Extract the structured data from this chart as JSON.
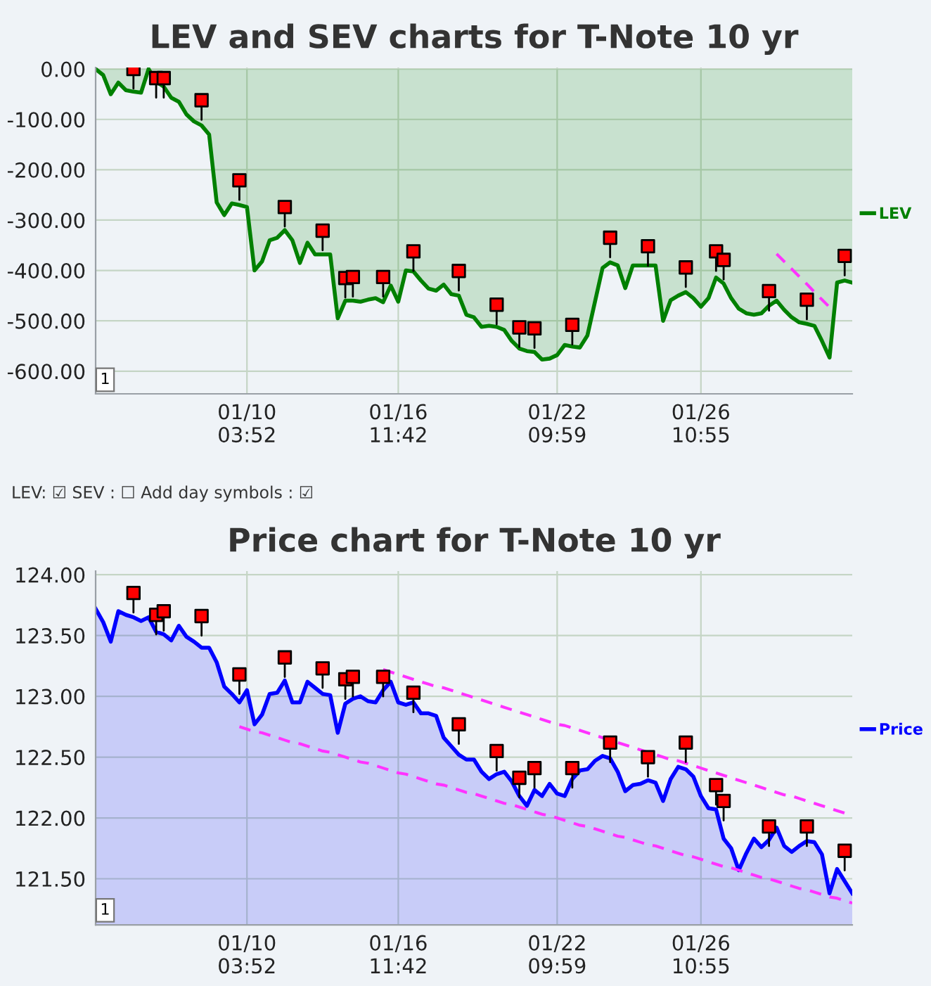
{
  "chart_data": [
    {
      "type": "area",
      "title": "LEV and SEV charts for T-Note 10 yr",
      "categories": [
        null,
        null,
        null,
        null,
        null,
        null,
        null,
        null,
        null,
        null,
        null,
        null,
        null,
        null,
        null,
        null,
        null,
        null,
        null,
        null,
        "01/10\n03:52",
        null,
        null,
        null,
        null,
        null,
        null,
        null,
        null,
        null,
        null,
        null,
        null,
        null,
        null,
        null,
        null,
        null,
        null,
        null,
        "01/16\n11:42",
        null,
        null,
        null,
        null,
        null,
        null,
        null,
        null,
        null,
        null,
        null,
        null,
        null,
        null,
        null,
        null,
        null,
        null,
        null,
        null,
        "01/22\n09:59",
        null,
        null,
        null,
        null,
        null,
        null,
        null,
        null,
        null,
        null,
        null,
        null,
        null,
        null,
        null,
        null,
        null,
        null,
        "01/26\n10:55",
        null,
        null,
        null,
        null,
        null,
        null,
        null,
        null,
        null,
        null,
        null,
        null,
        null,
        null,
        null,
        null,
        null,
        null,
        null,
        null
      ],
      "ylim": [
        -645,
        3
      ],
      "yticks": [
        {
          "value": 0,
          "label": "0.00"
        },
        {
          "value": -100,
          "label": "-100.00"
        },
        {
          "value": -200,
          "label": "-200.00"
        },
        {
          "value": -300,
          "label": "-300.00"
        },
        {
          "value": -400,
          "label": "-400.00"
        },
        {
          "value": -500,
          "label": "-500.00"
        },
        {
          "value": -600,
          "label": "-600.00"
        }
      ],
      "grid": true,
      "legend": "right",
      "annotations": [
        "1"
      ],
      "series": [
        {
          "name": "LEV",
          "color": "#008000",
          "values": [
            0,
            -12,
            -50,
            -27,
            -42,
            -45,
            -47,
            0,
            -25,
            -35,
            -57,
            -65,
            -90,
            -104,
            -112,
            -130,
            -265,
            -290,
            -267,
            -270,
            -274,
            -400,
            -382,
            -340,
            -335,
            -320,
            -340,
            -385,
            -345,
            -368,
            -368,
            -368,
            -495,
            -460,
            -460,
            -462,
            -458,
            -455,
            -463,
            -430,
            -462,
            -400,
            -402,
            -420,
            -436,
            -440,
            -428,
            -447,
            -450,
            -488,
            -493,
            -512,
            -510,
            -512,
            -518,
            -540,
            -555,
            -560,
            -562,
            -577,
            -575,
            -568,
            -548,
            -551,
            -553,
            -529,
            -462,
            -395,
            -384,
            -390,
            -435,
            -390,
            -390,
            -390,
            -390,
            -500,
            -459,
            -450,
            -443,
            -455,
            -472,
            -455,
            -414,
            -426,
            -455,
            -476,
            -485,
            -488,
            -485,
            -470,
            -460,
            -478,
            -493,
            -503,
            -506,
            -510,
            -540,
            -573,
            -424,
            -420,
            -424
          ]
        },
        {
          "type": "scatter",
          "color": "#ff0000",
          "marker": "square",
          "values": [
            null,
            null,
            null,
            null,
            null,
            0,
            null,
            null,
            -18,
            -18,
            null,
            null,
            null,
            null,
            -62,
            null,
            null,
            null,
            null,
            -221,
            null,
            null,
            null,
            null,
            null,
            -274,
            null,
            null,
            null,
            null,
            -321,
            null,
            null,
            -415,
            -413,
            null,
            null,
            null,
            -413,
            null,
            null,
            null,
            -362,
            null,
            null,
            null,
            null,
            null,
            -401,
            null,
            null,
            null,
            null,
            -468,
            null,
            null,
            -513,
            null,
            -515,
            null,
            null,
            null,
            null,
            -508,
            null,
            null,
            null,
            null,
            -335,
            null,
            null,
            null,
            null,
            -352,
            null,
            null,
            null,
            null,
            -394,
            null,
            null,
            null,
            -362,
            -379,
            null,
            null,
            null,
            null,
            null,
            -441,
            null,
            null,
            null,
            null,
            -458,
            null,
            null,
            null,
            null,
            -371,
            null
          ]
        },
        {
          "type": "line",
          "color": "#ff33ff",
          "line_style": "dashed",
          "values": [
            null,
            null,
            null,
            null,
            null,
            null,
            null,
            null,
            null,
            null,
            null,
            null,
            null,
            null,
            null,
            null,
            null,
            null,
            null,
            null,
            null,
            null,
            null,
            null,
            null,
            null,
            null,
            null,
            null,
            null,
            null,
            null,
            null,
            null,
            null,
            null,
            null,
            null,
            null,
            null,
            null,
            null,
            null,
            null,
            null,
            null,
            null,
            null,
            null,
            null,
            null,
            null,
            null,
            null,
            null,
            null,
            null,
            null,
            null,
            null,
            null,
            null,
            null,
            null,
            null,
            null,
            null,
            null,
            null,
            null,
            null,
            null,
            null,
            null,
            null,
            null,
            null,
            null,
            null,
            null,
            null,
            null,
            null,
            null,
            null,
            null,
            null,
            null,
            null,
            null,
            -367,
            -382,
            -397,
            -412,
            -427,
            -443,
            -458,
            -473,
            null,
            null,
            null
          ]
        }
      ]
    },
    {
      "type": "other",
      "annotations": [
        "LEV: ☑ SEV : ☐ Add day symbols : ☑"
      ]
    },
    {
      "type": "area",
      "title": "Price chart for T-Note 10 yr",
      "categories": [
        null,
        null,
        null,
        null,
        null,
        null,
        null,
        null,
        null,
        null,
        null,
        null,
        null,
        null,
        null,
        null,
        null,
        null,
        null,
        null,
        "01/10\n03:52",
        null,
        null,
        null,
        null,
        null,
        null,
        null,
        null,
        null,
        null,
        null,
        null,
        null,
        null,
        null,
        null,
        null,
        null,
        null,
        "01/16\n11:42",
        null,
        null,
        null,
        null,
        null,
        null,
        null,
        null,
        null,
        null,
        null,
        null,
        null,
        null,
        null,
        null,
        null,
        null,
        null,
        null,
        "01/22\n09:59",
        null,
        null,
        null,
        null,
        null,
        null,
        null,
        null,
        null,
        null,
        null,
        null,
        null,
        null,
        null,
        null,
        null,
        null,
        "01/26\n10:55",
        null,
        null,
        null,
        null,
        null,
        null,
        null,
        null,
        null,
        null,
        null,
        null,
        null,
        null,
        null,
        null,
        null,
        null,
        null,
        null
      ],
      "ylim": [
        121.12,
        124.03
      ],
      "yticks": [
        {
          "value": 121.5,
          "label": "121.50"
        },
        {
          "value": 122,
          "label": "122.00"
        },
        {
          "value": 122.5,
          "label": "122.50"
        },
        {
          "value": 123,
          "label": "123.00"
        },
        {
          "value": 123.5,
          "label": "123.50"
        },
        {
          "value": 124,
          "label": "124.00"
        }
      ],
      "grid": true,
      "legend": "right",
      "annotations": [
        "1"
      ],
      "series": [
        {
          "name": "Price",
          "color": "#0000ff",
          "values": [
            123.72,
            123.61,
            123.45,
            123.7,
            123.67,
            123.65,
            123.62,
            123.65,
            123.53,
            123.51,
            123.46,
            123.58,
            123.49,
            123.45,
            123.4,
            123.4,
            123.28,
            123.08,
            123.02,
            122.95,
            123.05,
            122.77,
            122.85,
            123.02,
            123.03,
            123.13,
            122.95,
            122.95,
            123.12,
            123.07,
            123.02,
            123.01,
            122.7,
            122.94,
            122.98,
            123.0,
            122.96,
            122.95,
            123.05,
            123.12,
            122.95,
            122.93,
            122.95,
            122.86,
            122.86,
            122.84,
            122.66,
            122.59,
            122.52,
            122.48,
            122.48,
            122.38,
            122.32,
            122.36,
            122.38,
            122.3,
            122.18,
            122.1,
            122.23,
            122.18,
            122.28,
            122.2,
            122.18,
            122.32,
            122.39,
            122.4,
            122.47,
            122.51,
            122.49,
            122.38,
            122.22,
            122.27,
            122.28,
            122.31,
            122.29,
            122.14,
            122.32,
            122.42,
            122.4,
            122.34,
            122.18,
            122.08,
            122.07,
            121.83,
            121.75,
            121.57,
            121.71,
            121.83,
            121.76,
            121.82,
            121.92,
            121.77,
            121.72,
            121.77,
            121.81,
            121.8,
            121.7,
            121.38,
            121.58,
            121.48,
            121.38
          ]
        },
        {
          "type": "scatter",
          "color": "#ff0000",
          "marker": "square",
          "values": [
            null,
            null,
            null,
            null,
            null,
            123.85,
            null,
            null,
            123.67,
            123.7,
            null,
            null,
            null,
            null,
            123.66,
            null,
            null,
            null,
            null,
            123.18,
            null,
            null,
            null,
            null,
            null,
            123.32,
            null,
            null,
            null,
            null,
            123.23,
            null,
            null,
            123.14,
            123.16,
            null,
            null,
            null,
            123.16,
            null,
            null,
            null,
            123.03,
            null,
            null,
            null,
            null,
            null,
            122.77,
            null,
            null,
            null,
            null,
            122.55,
            null,
            null,
            122.33,
            null,
            122.41,
            null,
            null,
            null,
            null,
            122.41,
            null,
            null,
            null,
            null,
            122.62,
            null,
            null,
            null,
            null,
            122.5,
            null,
            null,
            null,
            null,
            122.62,
            null,
            null,
            null,
            122.27,
            122.14,
            null,
            null,
            null,
            null,
            null,
            121.93,
            null,
            null,
            null,
            null,
            121.93,
            null,
            null,
            null,
            null,
            121.73,
            null
          ]
        },
        {
          "type": "line",
          "color": "#ff33ff",
          "line_style": "dashed",
          "values": [
            null,
            null,
            null,
            null,
            null,
            null,
            null,
            null,
            null,
            null,
            null,
            null,
            null,
            null,
            null,
            null,
            null,
            null,
            null,
            null,
            null,
            null,
            null,
            null,
            null,
            null,
            null,
            null,
            null,
            null,
            null,
            null,
            null,
            null,
            null,
            null,
            null,
            null,
            123.22,
            123.2,
            123.18,
            123.16,
            123.14,
            123.12,
            123.1,
            123.08,
            123.07,
            123.05,
            123.03,
            123.01,
            122.99,
            122.97,
            122.95,
            122.93,
            122.91,
            122.89,
            122.87,
            122.85,
            122.83,
            122.81,
            122.79,
            122.77,
            122.76,
            122.74,
            122.72,
            122.7,
            122.68,
            122.66,
            122.64,
            122.62,
            122.6,
            122.58,
            122.56,
            122.54,
            122.52,
            122.5,
            122.48,
            122.47,
            122.45,
            122.43,
            122.41,
            122.39,
            122.37,
            122.35,
            122.33,
            122.31,
            122.29,
            122.27,
            122.25,
            122.23,
            122.21,
            122.19,
            122.18,
            122.16,
            122.14,
            122.12,
            122.1,
            122.08,
            122.06,
            122.04,
            122.02
          ]
        },
        {
          "type": "line",
          "color": "#ff33ff",
          "line_style": "dashed",
          "values": [
            null,
            null,
            null,
            null,
            null,
            null,
            null,
            null,
            null,
            null,
            null,
            null,
            null,
            null,
            null,
            null,
            null,
            null,
            null,
            122.75,
            122.73,
            122.71,
            122.7,
            122.68,
            122.66,
            122.64,
            122.62,
            122.61,
            122.59,
            122.57,
            122.55,
            122.54,
            122.52,
            122.5,
            122.48,
            122.46,
            122.45,
            122.43,
            122.41,
            122.39,
            122.37,
            122.36,
            122.34,
            122.32,
            122.3,
            122.28,
            122.27,
            122.25,
            122.23,
            122.21,
            122.2,
            122.18,
            122.16,
            122.14,
            122.12,
            122.11,
            122.09,
            122.07,
            122.05,
            122.03,
            122.02,
            122.0,
            121.98,
            121.96,
            121.94,
            121.93,
            121.91,
            121.89,
            121.87,
            121.85,
            121.84,
            121.82,
            121.8,
            121.78,
            121.77,
            121.75,
            121.73,
            121.71,
            121.69,
            121.68,
            121.66,
            121.64,
            121.62,
            121.6,
            121.59,
            121.57,
            121.55,
            121.53,
            121.51,
            121.5,
            121.48,
            121.46,
            121.44,
            121.42,
            121.41,
            121.39,
            121.37,
            121.35,
            121.34,
            121.32,
            121.3
          ]
        }
      ]
    }
  ]
}
